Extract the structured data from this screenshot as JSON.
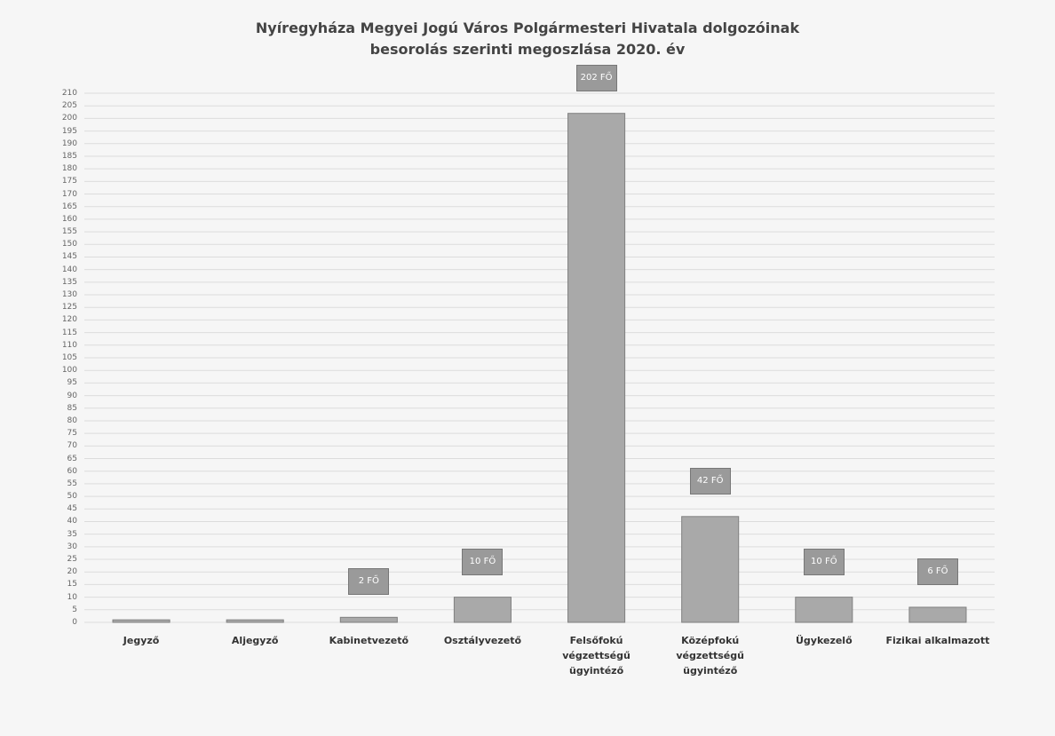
{
  "chart_data": {
    "type": "bar",
    "title": "Nyíregyháza Megyei Jogú Város Polgármesteri Hivatala dolgozóinak\nbesorolás szerinti megoszlása 2020. év",
    "categories": [
      "Jegyző",
      "Aljegyző",
      "Kabinetvezető",
      "Osztályvezető",
      "Felsőfokú\nvégzettségű\nügyintéző",
      "Középfokú\nvégzettségű\nügyintéző",
      "Ügykezelő",
      "Fizikai alkalmazott"
    ],
    "values": [
      1,
      1,
      2,
      10,
      202,
      42,
      10,
      6
    ],
    "value_labels": [
      null,
      null,
      "2 FŐ",
      "10 FŐ",
      "202 FŐ",
      "42 FŐ",
      "10 FŐ",
      "6 FŐ"
    ],
    "color": "#a9a9a9",
    "ylim": [
      0,
      210
    ],
    "yticks": [
      0,
      5,
      10,
      15,
      20,
      25,
      30,
      35,
      40,
      45,
      50,
      55,
      60,
      65,
      70,
      75,
      80,
      85,
      90,
      95,
      100,
      105,
      110,
      115,
      120,
      125,
      130,
      135,
      140,
      145,
      150,
      155,
      160,
      165,
      170,
      175,
      180,
      185,
      190,
      195,
      200,
      205,
      210
    ],
    "grid": true
  }
}
